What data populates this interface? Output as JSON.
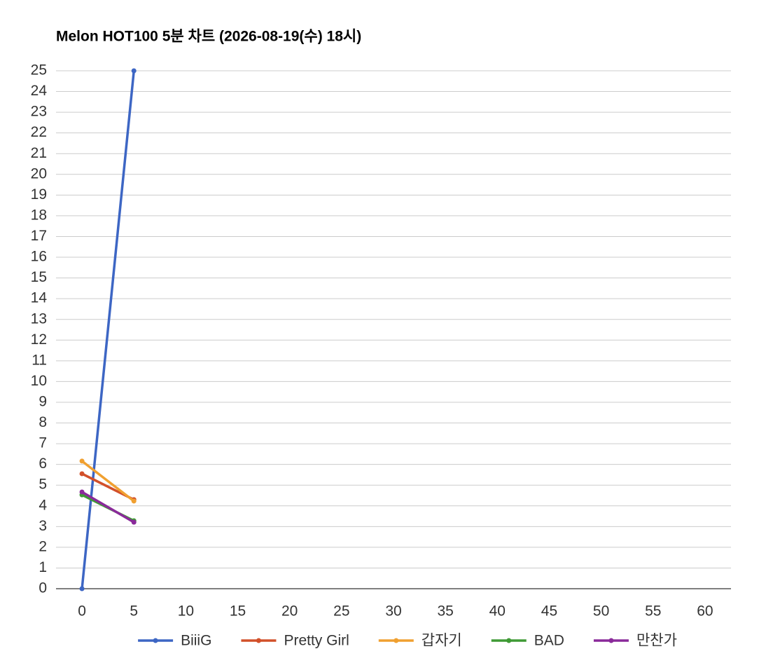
{
  "chart_data": {
    "type": "line",
    "title": "Melon HOT100 5분 차트 (2026-08-19(수) 18시)",
    "x": [
      0,
      5
    ],
    "series": [
      {
        "name": "BiiiG",
        "color": "#3d66c4",
        "values": [
          0,
          25
        ]
      },
      {
        "name": "Pretty Girl",
        "color": "#d2502a",
        "values": [
          5.55,
          4.3
        ]
      },
      {
        "name": "갑자기",
        "color": "#f0a030",
        "values": [
          6.16,
          4.23
        ]
      },
      {
        "name": "BAD",
        "color": "#3f9a35",
        "values": [
          4.53,
          3.28
        ]
      },
      {
        "name": "만찬가",
        "color": "#8a2a9a",
        "values": [
          4.67,
          3.21
        ]
      }
    ],
    "xlim": [
      -2.5,
      62.5
    ],
    "xticks": [
      0,
      5,
      10,
      15,
      20,
      25,
      30,
      35,
      40,
      45,
      50,
      55,
      60
    ],
    "ylim": [
      0,
      25
    ],
    "yticks": [
      0,
      1,
      2,
      3,
      4,
      5,
      6,
      7,
      8,
      9,
      10,
      11,
      12,
      13,
      14,
      15,
      16,
      17,
      18,
      19,
      20,
      21,
      22,
      23,
      24,
      25
    ],
    "grid": true,
    "legend": "bottom"
  }
}
